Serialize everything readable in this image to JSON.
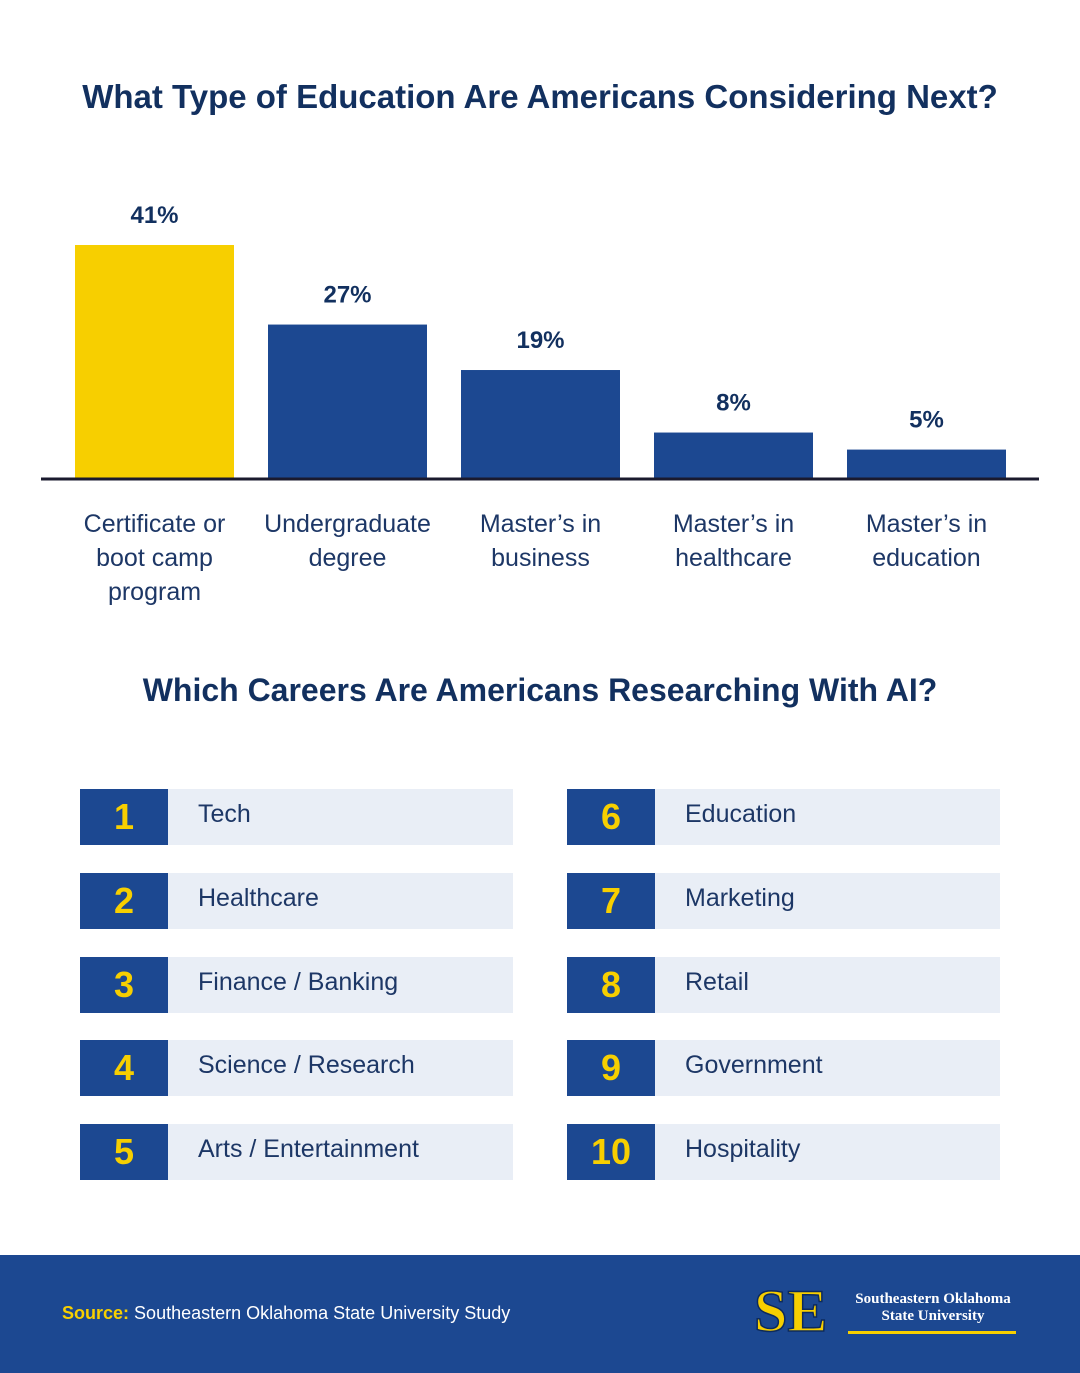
{
  "chart_data": {
    "type": "bar",
    "title": "What Type of Education Are Americans Considering Next?",
    "categories": [
      [
        "Certificate or",
        "boot camp",
        "program"
      ],
      [
        "Undergraduate",
        "degree"
      ],
      [
        "Master’s in",
        "business"
      ],
      [
        "Master’s in",
        "healthcare"
      ],
      [
        "Master’s in",
        "education"
      ]
    ],
    "values": [
      41,
      27,
      19,
      8,
      5
    ],
    "value_labels": [
      "41%",
      "27%",
      "19%",
      "8%",
      "5%"
    ],
    "ylim": [
      0,
      41
    ],
    "xlabel": "",
    "ylabel": "",
    "grid": false,
    "colors": {
      "highlight": "#f7cf00",
      "bar": "#1c4891",
      "axis": "#1a1a2e",
      "text": "#12305f",
      "label": "#1d3766"
    }
  },
  "careers": {
    "title": "Which Careers Are Americans Researching With AI?",
    "items": [
      {
        "rank": "1",
        "label": "Tech"
      },
      {
        "rank": "2",
        "label": "Healthcare"
      },
      {
        "rank": "3",
        "label": "Finance / Banking"
      },
      {
        "rank": "4",
        "label": "Science / Research"
      },
      {
        "rank": "5",
        "label": "Arts / Entertainment"
      },
      {
        "rank": "6",
        "label": "Education"
      },
      {
        "rank": "7",
        "label": "Marketing"
      },
      {
        "rank": "8",
        "label": "Retail"
      },
      {
        "rank": "9",
        "label": "Government"
      },
      {
        "rank": "10",
        "label": "Hospitality"
      }
    ]
  },
  "footer": {
    "source_prefix": "Source:",
    "source_text": "Southeastern Oklahoma State University Study",
    "logo_line1": "Southeastern Oklahoma",
    "logo_line2": "State University",
    "logo_mark": "SE"
  }
}
